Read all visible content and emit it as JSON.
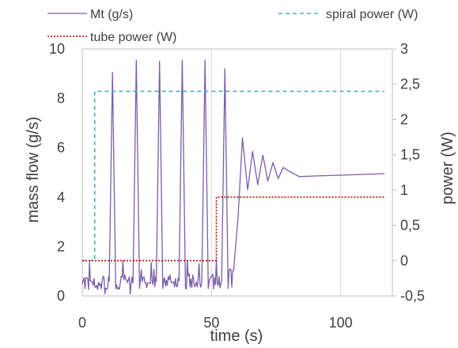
{
  "chart_data": {
    "type": "line",
    "xlabel": "time (s)",
    "ylabel_left": "mass flow (g/s)",
    "ylabel_right": "power (W)",
    "xlim": [
      0,
      120
    ],
    "xticks": [
      0,
      50,
      100
    ],
    "xtick_labels": [
      "0",
      "50",
      "100"
    ],
    "ylim_left": [
      0,
      10
    ],
    "yticks_left": [
      0,
      2,
      4,
      6,
      8,
      10
    ],
    "ytick_labels_left": [
      "0",
      "2",
      "4",
      "6",
      "8",
      "10"
    ],
    "ylim_right": [
      -0.5,
      3
    ],
    "yticks_right": [
      -0.5,
      0,
      0.5,
      1,
      1.5,
      2,
      2.5,
      3
    ],
    "ytick_labels_right": [
      "-0,5",
      "0",
      "0,5",
      "1",
      "1,5",
      "2",
      "2,5",
      "3"
    ],
    "grid": "vertical",
    "legend_position": "top",
    "series": [
      {
        "name": "Mt (g/s)",
        "axis": "left",
        "style": "solid",
        "color": "#7b5ea7",
        "peaks": [
          {
            "t": 11.7,
            "v": 9.05
          },
          {
            "t": 20.9,
            "v": 9.55
          },
          {
            "t": 29.9,
            "v": 9.5
          },
          {
            "t": 38.7,
            "v": 9.55
          },
          {
            "t": 47.5,
            "v": 9.55
          },
          {
            "t": 55.2,
            "v": 9.2
          }
        ],
        "points": [
          [
            60.3,
            3.2
          ],
          [
            62.0,
            6.4
          ],
          [
            64.0,
            4.3
          ],
          [
            65.9,
            5.85
          ],
          [
            67.9,
            4.5
          ],
          [
            69.9,
            5.7
          ],
          [
            71.8,
            4.65
          ],
          [
            73.8,
            5.4
          ],
          [
            75.8,
            4.75
          ],
          [
            77.8,
            5.2
          ],
          [
            80.0,
            5.05
          ],
          [
            84.0,
            4.8
          ],
          [
            90.0,
            4.9
          ],
          [
            100.0,
            4.85
          ],
          [
            110.0,
            4.9
          ],
          [
            117.0,
            4.9
          ]
        ]
      },
      {
        "name": "spiral power (W)",
        "axis": "right",
        "style": "dashed",
        "color": "#4bacc6",
        "points": [
          [
            0,
            0
          ],
          [
            4.8,
            0
          ],
          [
            4.8,
            2.4
          ],
          [
            117,
            2.4
          ]
        ]
      },
      {
        "name": "tube power (W)",
        "axis": "right",
        "style": "dotted",
        "color": "#c00000",
        "points": [
          [
            0,
            0
          ],
          [
            51.9,
            0
          ],
          [
            51.9,
            0.9
          ],
          [
            117,
            0.9
          ]
        ]
      }
    ]
  }
}
